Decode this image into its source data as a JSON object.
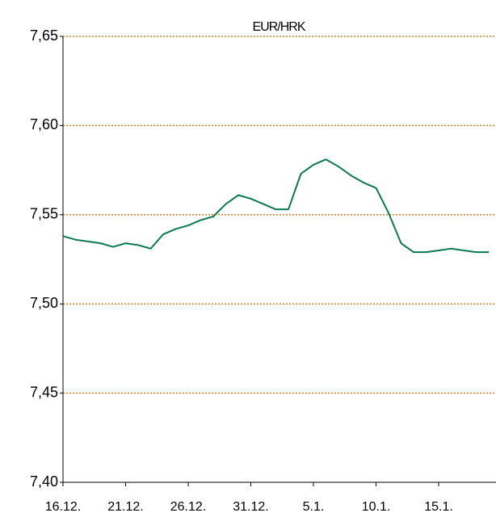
{
  "chart_data": {
    "type": "line",
    "title": "EUR/HRK",
    "categories": [
      "16.12.",
      null,
      null,
      null,
      null,
      "21.12.",
      null,
      null,
      null,
      null,
      "26.12.",
      null,
      null,
      null,
      null,
      "31.12.",
      null,
      null,
      null,
      null,
      "5.1.",
      null,
      null,
      null,
      null,
      "10.1.",
      null,
      null,
      null,
      null,
      "15.1.",
      null,
      null,
      null,
      null
    ],
    "series": [
      {
        "name": "EUR/HRK",
        "color": "#0b7a50",
        "values": [
          7.538,
          7.536,
          7.535,
          7.534,
          7.532,
          7.534,
          7.533,
          7.531,
          7.539,
          7.542,
          7.544,
          7.547,
          7.549,
          7.556,
          7.561,
          7.559,
          7.556,
          7.553,
          7.553,
          7.573,
          7.578,
          7.581,
          7.577,
          7.572,
          7.568,
          7.565,
          7.551,
          7.534,
          7.529,
          7.529,
          7.53,
          7.531,
          7.53,
          7.529,
          7.529
        ]
      }
    ],
    "ylim": [
      7.4,
      7.65
    ],
    "yticks": [
      {
        "value": 7.4,
        "label": "7,40"
      },
      {
        "value": 7.45,
        "label": "7,45"
      },
      {
        "value": 7.5,
        "label": "7,50"
      },
      {
        "value": 7.55,
        "label": "7,55"
      },
      {
        "value": 7.6,
        "label": "7,60"
      },
      {
        "value": 7.65,
        "label": "7,65"
      }
    ],
    "grid": true,
    "grid_color": "#e07b20"
  }
}
